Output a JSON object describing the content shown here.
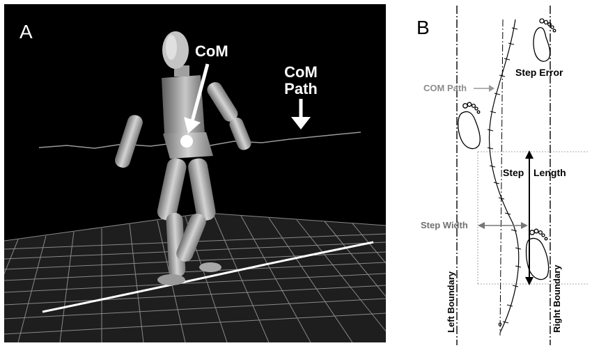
{
  "panel_a": {
    "label": "A",
    "com_label": "CoM",
    "com_path_label_line1": "CoM",
    "com_path_label_line2": "Path"
  },
  "panel_b": {
    "label": "B",
    "step_error": "Step Error",
    "com_path": "COM Path",
    "step_word": "Step",
    "length_word": "Length",
    "step_width": "Step Width",
    "left_boundary": "Left Boundary",
    "right_boundary": "Right Boundary"
  },
  "icons": [
    "footprint-icon",
    "arrow-icon"
  ]
}
